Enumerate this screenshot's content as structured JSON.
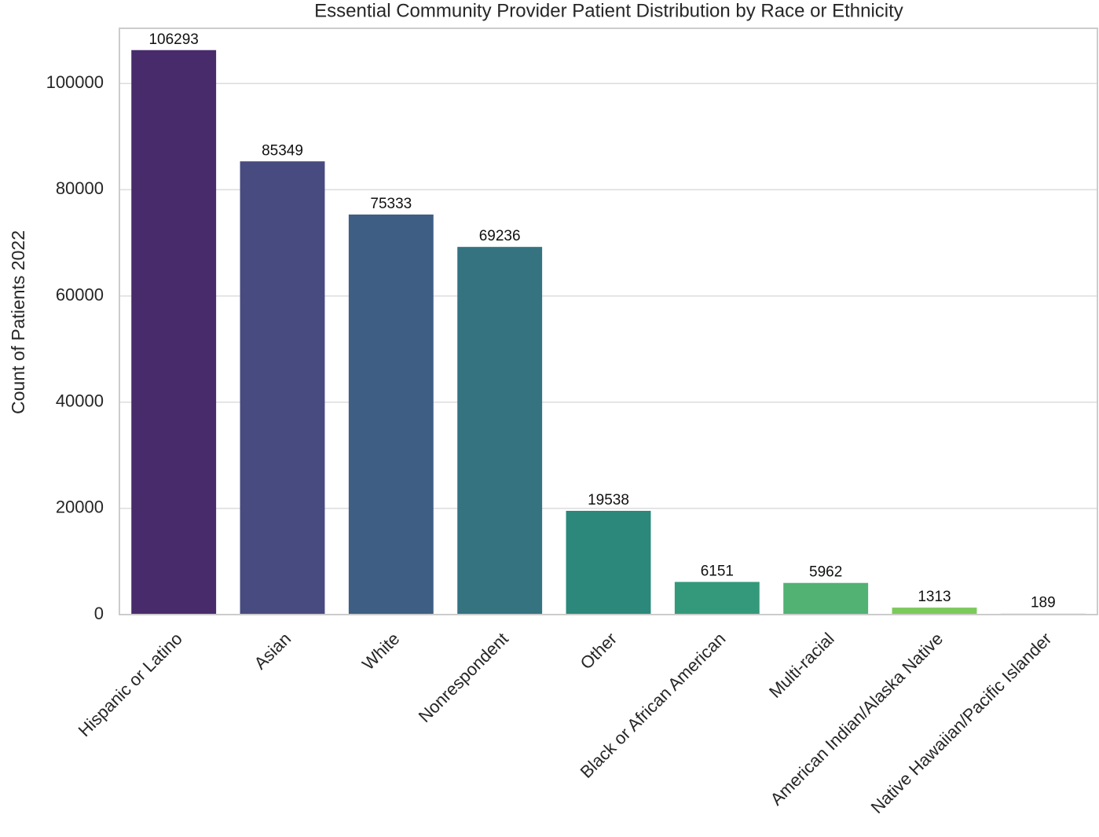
{
  "chart_data": {
    "type": "bar",
    "title": "Essential Community Provider Patient Distribution by Race or Ethnicity",
    "y_label": "Count of Patients 2022",
    "categories": [
      "Hispanic or Latino",
      "Asian",
      "White",
      "Nonrespondent",
      "Other",
      "Black or African American",
      "Multi-racial",
      "American Indian/Alaska Native",
      "Native Hawaiian/Pacific Islander"
    ],
    "values": [
      106293,
      85349,
      75333,
      69236,
      19538,
      6151,
      5962,
      1313,
      189
    ],
    "colors": [
      "#482b6b",
      "#484b7f",
      "#3e5f83",
      "#357381",
      "#2b887a",
      "#33997a",
      "#51b273",
      "#7cc95c",
      "#bddf3f"
    ],
    "ylim": [
      0,
      110400
    ],
    "yticks": [
      0,
      20000,
      40000,
      60000,
      80000,
      100000
    ],
    "grid": true
  }
}
